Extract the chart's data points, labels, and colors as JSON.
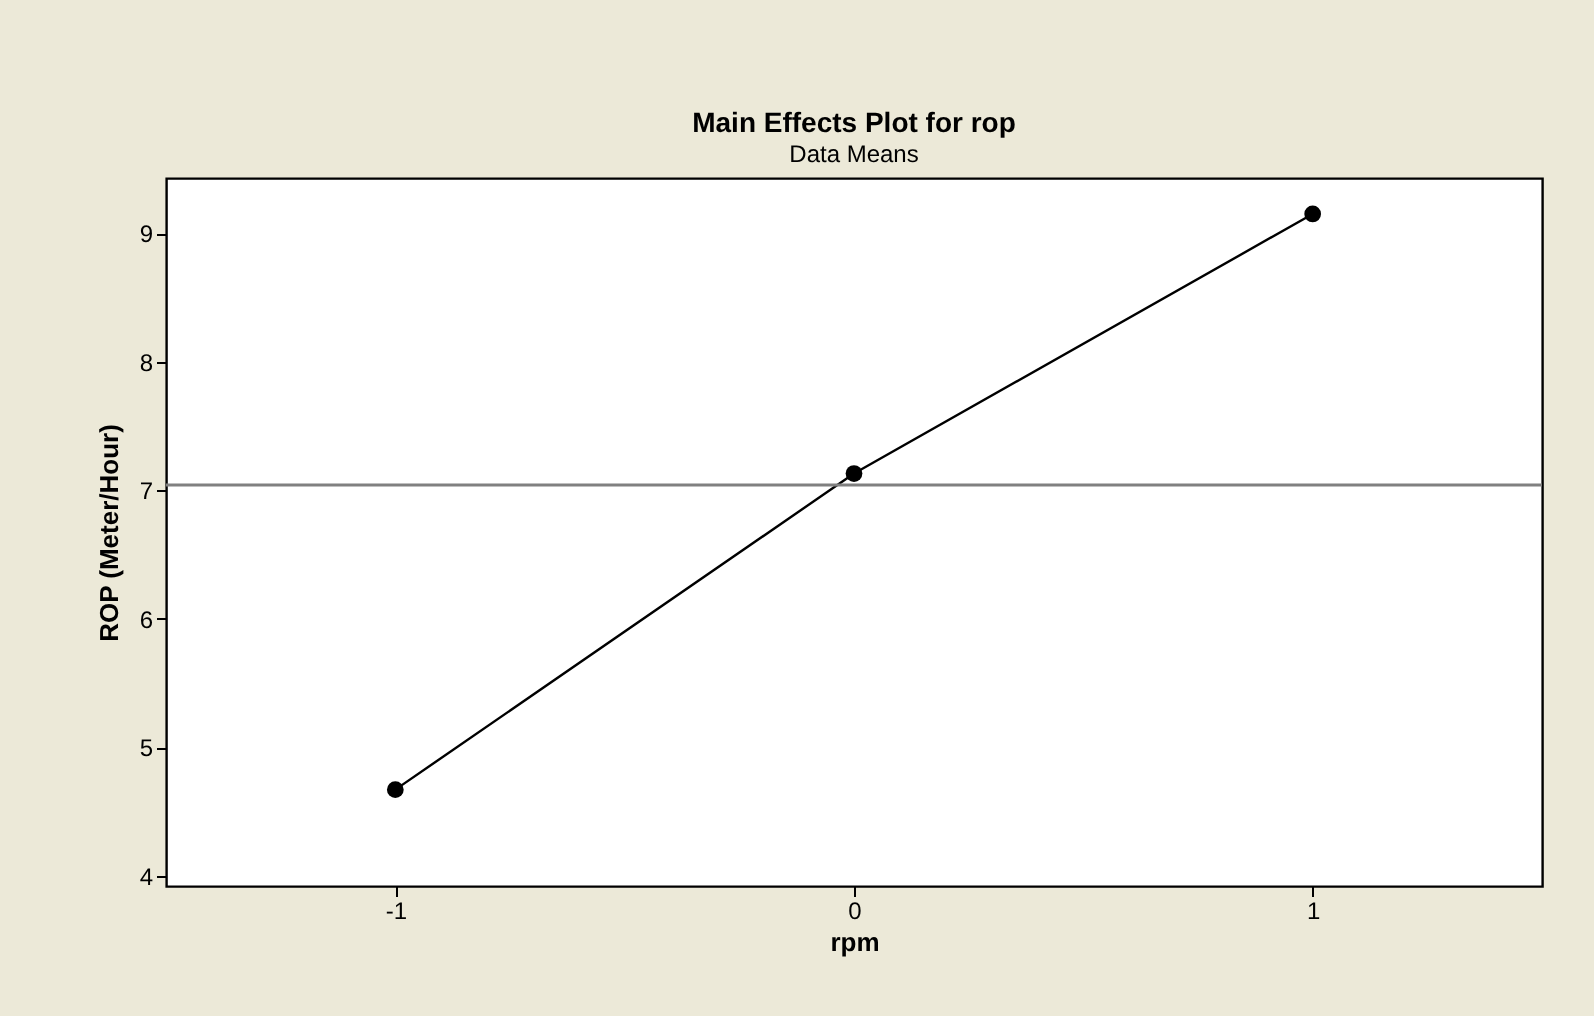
{
  "chart_data": {
    "type": "line",
    "title": "Main Effects Plot for rop",
    "subtitle": "Data Means",
    "xlabel": "rpm",
    "ylabel": "ROP (Meter/Hour)",
    "x": [
      -1,
      0,
      1
    ],
    "series": [
      {
        "color": "#000000",
        "values": [
          4.67,
          7.13,
          9.15
        ]
      }
    ],
    "xlim": [
      -1.5,
      1.5
    ],
    "xticks": [
      -1,
      0,
      1
    ],
    "ylim": [
      3.92,
      9.43
    ],
    "yticks": [
      4,
      5,
      6,
      7,
      8,
      9
    ],
    "ref_lines": [
      {
        "axis": "y",
        "value": 7.04,
        "color": "#808080"
      }
    ],
    "marker": "circle",
    "grid": false
  }
}
